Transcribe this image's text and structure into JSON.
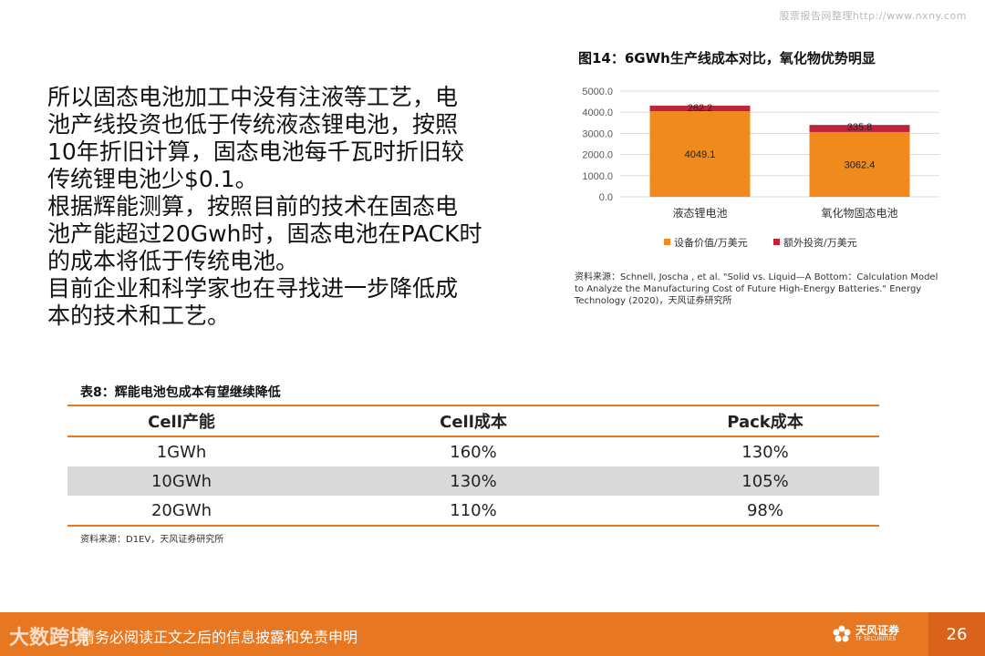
{
  "watermark": "股票报告网整理http://www.nxny.com",
  "paragraph": [
    "所以固态电池加工中没有注液等工艺，电",
    "池产线投资也低于传统液态锂电池，按照",
    "10年折旧计算，固态电池每千瓦时折旧较",
    "传统锂电池少$0.1。",
    "根据辉能测算，按照目前的技术在固态电",
    "池产能超过20Gwh时，固态电池在PACK时",
    "的成本将低于传统电池。",
    "目前企业和科学家也在寻找进一步降低成",
    "本的技术和工艺。"
  ],
  "figure": {
    "title": "图14：6GWh生产线成本对比，氧化物优势明显",
    "source": "资料来源：Schnell, Joscha , et al. \"Solid vs. Liquid—A Bottom：Calculation Model to Analyze the Manufacturing Cost of Future High-Energy Batteries.\" Energy Technology (2020)，天风证券研究所"
  },
  "chart_data": {
    "type": "bar",
    "stacked": true,
    "categories": [
      "液态锂电池",
      "氧化物固态电池"
    ],
    "series": [
      {
        "name": "设备价值/万美元",
        "values": [
          4049.1,
          3062.4
        ],
        "color": "#f08a1c"
      },
      {
        "name": "额外投资/万美元",
        "values": [
          262.2,
          335.8
        ],
        "color": "#c0243a"
      }
    ],
    "y_ticks": [
      "0.0",
      "1000.0",
      "2000.0",
      "3000.0",
      "4000.0",
      "5000.0"
    ],
    "ylim": [
      0,
      5000
    ],
    "data_labels": [
      [
        "4049.1",
        "3062.4"
      ],
      [
        "262.2",
        "335.8"
      ]
    ],
    "legend_position": "bottom",
    "grid": true
  },
  "table": {
    "title": "表8：辉能电池包成本有望继续降低",
    "headers": [
      "Cell产能",
      "Cell成本",
      "Pack成本"
    ],
    "rows": [
      [
        "1GWh",
        "160%",
        "130%"
      ],
      [
        "10GWh",
        "130%",
        "105%"
      ],
      [
        "20GWh",
        "110%",
        "98%"
      ]
    ],
    "source": "资料来源：D1EV，天风证券研究所"
  },
  "footer": {
    "left_mark": "大数跨境",
    "notice": "请务必阅读正文之后的信息披露和免责申明",
    "logo_text": "天风证券",
    "logo_sub": "TF SECURITIES",
    "page_number": "26"
  },
  "colors": {
    "accent": "#e87722",
    "bar_main": "#f08a1c",
    "bar_extra": "#c0243a",
    "row_shade": "#d9d9d9"
  }
}
